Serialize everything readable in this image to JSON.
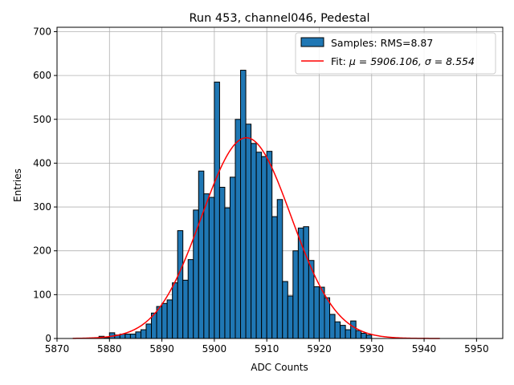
{
  "chart_data": {
    "type": "bar",
    "title": "Run 453, channel046, Pedestal",
    "xlabel": "ADC Counts",
    "ylabel": "Entries",
    "xlim": [
      5870,
      5955
    ],
    "ylim": [
      0,
      710
    ],
    "xticks": [
      5870,
      5880,
      5890,
      5900,
      5910,
      5920,
      5930,
      5940,
      5950
    ],
    "yticks": [
      0,
      100,
      200,
      300,
      400,
      500,
      600,
      700
    ],
    "grid": true,
    "legend_position": "top-right",
    "colors": {
      "bars": "#1f77b4",
      "bar_edge": "#000000",
      "fit": "#ff0000",
      "grid": "#b0b0b0"
    },
    "histogram": {
      "name": "Samples: RMS=8.87",
      "bin_start": 5878,
      "bin_width": 1,
      "counts": [
        5,
        2,
        13,
        8,
        10,
        10,
        10,
        15,
        20,
        33,
        58,
        73,
        80,
        88,
        127,
        246,
        133,
        180,
        293,
        382,
        330,
        322,
        585,
        345,
        298,
        368,
        500,
        612,
        489,
        445,
        425,
        415,
        427,
        278,
        317,
        130,
        97,
        200,
        252,
        255,
        178,
        118,
        117,
        93,
        55,
        38,
        30,
        20,
        40,
        18,
        12,
        8
      ]
    },
    "fit": {
      "name": "Fit: μ = 5906.106, σ = 8.554",
      "label_prefix": "Fit: ",
      "mu_label": "μ = 5906.106, ",
      "sigma_label": "σ = 8.554",
      "mu": 5906.106,
      "sigma": 8.554,
      "amplitude": 458,
      "x_range": [
        5873,
        5943
      ]
    }
  }
}
